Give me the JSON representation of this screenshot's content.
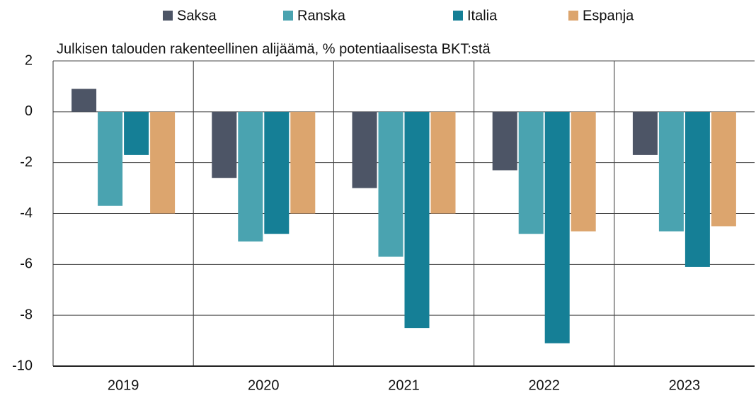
{
  "chart_data": {
    "type": "bar",
    "title": "Julkisen talouden rakenteellinen alijäämä, % potentiaalisesta BKT:stä",
    "categories": [
      "2019",
      "2020",
      "2021",
      "2022",
      "2023"
    ],
    "series": [
      {
        "name": "Saksa",
        "color": "#4d5566",
        "values": [
          0.9,
          -2.6,
          -3.0,
          -2.3,
          -1.7
        ]
      },
      {
        "name": "Ranska",
        "color": "#4aa3b0",
        "values": [
          -3.7,
          -5.1,
          -5.7,
          -4.8,
          -4.7
        ]
      },
      {
        "name": "Italia",
        "color": "#157f96",
        "values": [
          -1.7,
          -4.8,
          -8.5,
          -9.1,
          -6.1
        ]
      },
      {
        "name": "Espanja",
        "color": "#dca56e",
        "values": [
          -4.0,
          -4.0,
          -4.0,
          -4.7,
          -4.5
        ]
      }
    ],
    "ylim": [
      -10,
      2
    ],
    "yticks": [
      -10,
      -8,
      -6,
      -4,
      -2,
      0,
      2
    ],
    "grid": true,
    "legend": "top"
  }
}
